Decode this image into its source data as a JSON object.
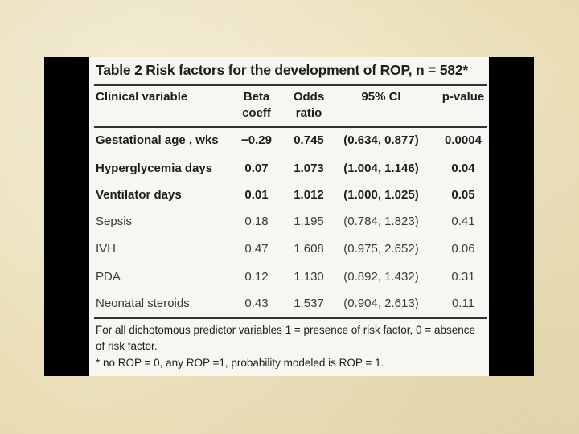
{
  "table": {
    "caption": "Table 2 Risk factors for the development of ROP, n = 582*",
    "headers": {
      "variable": "Clinical variable",
      "beta_line1": "Beta",
      "beta_line2": "coeff",
      "odds_line1": "Odds",
      "odds_line2": "ratio",
      "ci": "95% CI",
      "pvalue": "p-value"
    },
    "rows": [
      {
        "variable": "Gestational age , wks",
        "beta": "−0.29",
        "odds": "0.745",
        "ci": "(0.634, 0.877)",
        "p": "0.0004"
      },
      {
        "variable": "Hyperglycemia days",
        "beta": "0.07",
        "odds": "1.073",
        "ci": "(1.004, 1.146)",
        "p": "0.04"
      },
      {
        "variable": "Ventilator days",
        "beta": "0.01",
        "odds": "1.012",
        "ci": "(1.000, 1.025)",
        "p": "0.05"
      },
      {
        "variable": "Sepsis",
        "beta": "0.18",
        "odds": "1.195",
        "ci": "(0.784, 1.823)",
        "p": "0.41"
      },
      {
        "variable": "IVH",
        "beta": "0.47",
        "odds": "1.608",
        "ci": "(0.975, 2.652)",
        "p": "0.06"
      },
      {
        "variable": "PDA",
        "beta": "0.12",
        "odds": "1.130",
        "ci": "(0.892, 1.432)",
        "p": "0.31"
      },
      {
        "variable": "Neonatal steroids",
        "beta": "0.43",
        "odds": "1.537",
        "ci": "(0.904, 2.613)",
        "p": "0.11"
      }
    ],
    "footnote_line1": "For all dichotomous predictor variables 1 = presence of risk factor, 0 = absence",
    "footnote_line2": "of risk factor.",
    "footnote_line3": "* no ROP = 0, any ROP =1, probability modeled is ROP = 1."
  },
  "colors": {
    "background": "#efe6c4",
    "frame": "#000000",
    "panel": "#f7f6f2"
  }
}
